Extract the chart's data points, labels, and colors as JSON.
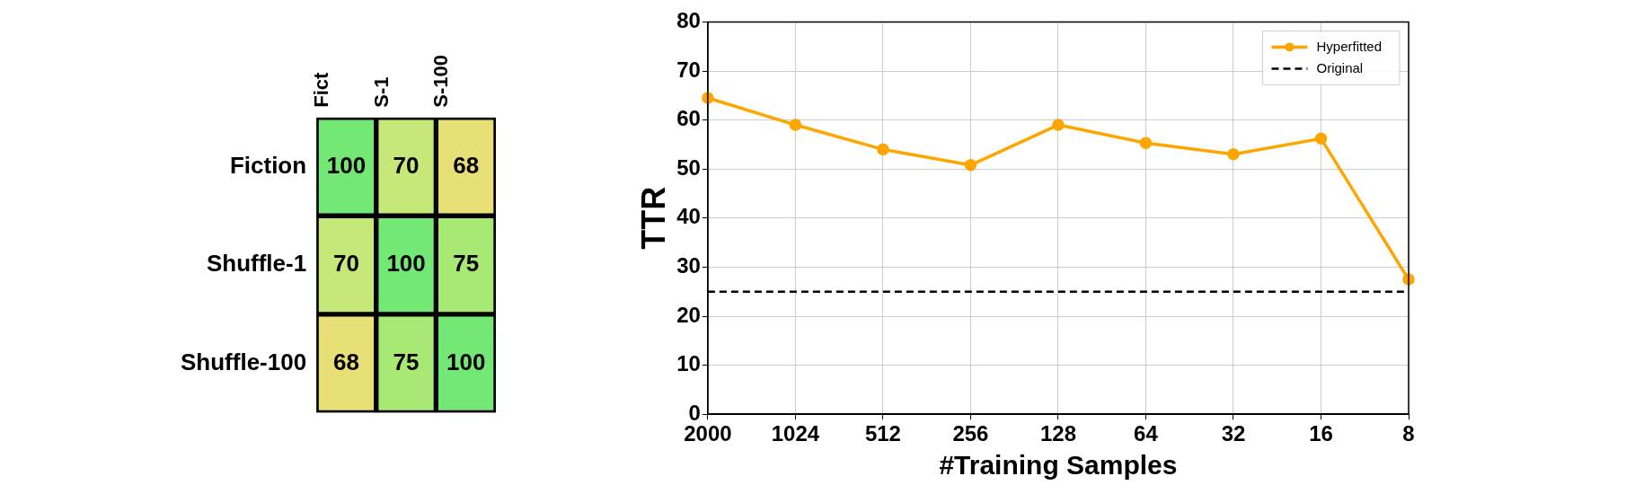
{
  "chart_data": [
    {
      "type": "heatmap",
      "categories": [
        "Fict",
        "S-1",
        "S-100"
      ],
      "y_categories": [
        "Fiction",
        "Shuffle-1",
        "Shuffle-100"
      ],
      "cells": [
        [
          100,
          70,
          68
        ],
        [
          70,
          100,
          75
        ],
        [
          68,
          75,
          100
        ]
      ],
      "colors": [
        [
          "#74e874",
          "#c6e878",
          "#e8e076"
        ],
        [
          "#c6e878",
          "#74e874",
          "#a8e874"
        ],
        [
          "#e8e076",
          "#a8e874",
          "#74e874"
        ]
      ],
      "data_labels": true
    },
    {
      "type": "line",
      "xlabel": "#Training Samples",
      "ylabel": "TTR",
      "categories": [
        "2000",
        "1024",
        "512",
        "256",
        "128",
        "64",
        "32",
        "16",
        "8"
      ],
      "series": [
        {
          "name": "Hyperfitted",
          "color": "#ffa500",
          "values": [
            64.5,
            59,
            54,
            50.8,
            59,
            55.3,
            53,
            56.2,
            27.5
          ]
        }
      ],
      "ref_lines": [
        {
          "axis": "y",
          "value": 25,
          "label": "Original",
          "color": "#000000",
          "line_style": "dashed"
        }
      ],
      "ylim": [
        0,
        80
      ],
      "yticks": [
        0,
        10,
        20,
        30,
        40,
        50,
        60,
        70,
        80
      ],
      "grid": true,
      "legend": "top right",
      "marker": "circle",
      "line_style": "solid"
    }
  ]
}
